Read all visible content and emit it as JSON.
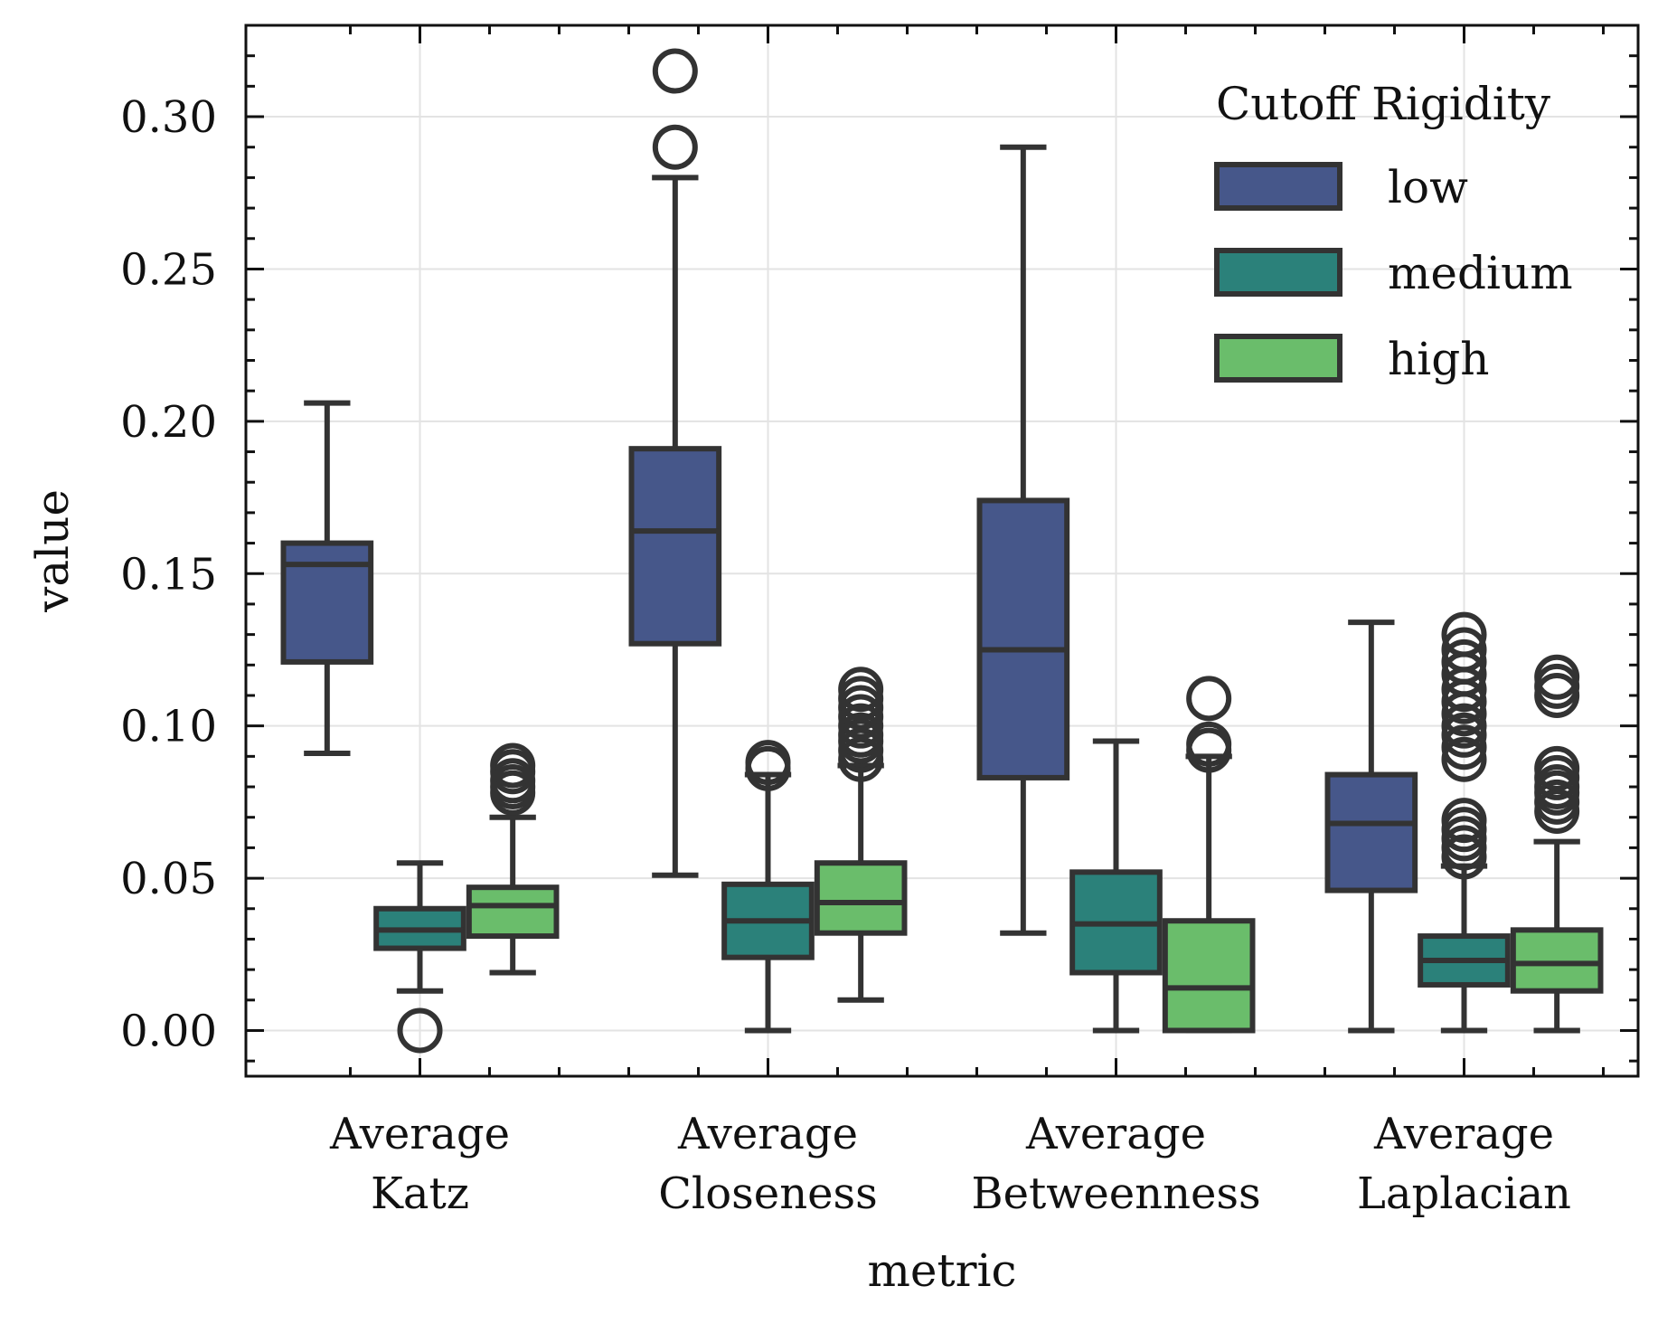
{
  "chart_data": {
    "type": "box",
    "title": "",
    "xlabel": "metric",
    "ylabel": "value",
    "ylim": [
      -0.015,
      0.33
    ],
    "yticks": [
      0.0,
      0.05,
      0.1,
      0.15,
      0.2,
      0.25,
      0.3
    ],
    "ytick_labels": [
      "0.00",
      "0.05",
      "0.10",
      "0.15",
      "0.20",
      "0.25",
      "0.30"
    ],
    "grid": true,
    "categories": [
      [
        "Average",
        "Katz"
      ],
      [
        "Average",
        "Closeness"
      ],
      [
        "Average",
        "Betweenness"
      ],
      [
        "Average",
        "Laplacian"
      ]
    ],
    "legend": {
      "title": "Cutoff Rigidity",
      "placement": "top-right"
    },
    "series": [
      {
        "name": "low",
        "color": "#46578a",
        "boxes": [
          {
            "whislo": 0.091,
            "q1": 0.121,
            "med": 0.153,
            "q3": 0.16,
            "whishi": 0.206,
            "fliers": []
          },
          {
            "whislo": 0.051,
            "q1": 0.127,
            "med": 0.164,
            "q3": 0.191,
            "whishi": 0.28,
            "fliers": [
              0.29,
              0.315
            ]
          },
          {
            "whislo": 0.032,
            "q1": 0.083,
            "med": 0.125,
            "q3": 0.174,
            "whishi": 0.29,
            "fliers": []
          },
          {
            "whislo": 0.0,
            "q1": 0.046,
            "med": 0.068,
            "q3": 0.084,
            "whishi": 0.134,
            "fliers": []
          }
        ]
      },
      {
        "name": "medium",
        "color": "#2b817a",
        "boxes": [
          {
            "whislo": 0.013,
            "q1": 0.027,
            "med": 0.033,
            "q3": 0.04,
            "whishi": 0.055,
            "fliers": [
              0.0
            ]
          },
          {
            "whislo": 0.0,
            "q1": 0.024,
            "med": 0.036,
            "q3": 0.048,
            "whishi": 0.084,
            "fliers": [
              0.086,
              0.088
            ]
          },
          {
            "whislo": 0.0,
            "q1": 0.019,
            "med": 0.035,
            "q3": 0.052,
            "whishi": 0.095,
            "fliers": []
          },
          {
            "whislo": 0.0,
            "q1": 0.015,
            "med": 0.023,
            "q3": 0.031,
            "whishi": 0.054,
            "fliers": [
              0.057,
              0.06,
              0.063,
              0.066,
              0.069,
              0.089,
              0.093,
              0.097,
              0.1,
              0.104,
              0.108,
              0.112,
              0.117,
              0.121,
              0.125,
              0.13
            ]
          }
        ]
      },
      {
        "name": "high",
        "color": "#6abd6b",
        "boxes": [
          {
            "whislo": 0.019,
            "q1": 0.031,
            "med": 0.041,
            "q3": 0.047,
            "whishi": 0.07,
            "fliers": [
              0.078,
              0.08,
              0.082,
              0.085,
              0.087
            ]
          },
          {
            "whislo": 0.01,
            "q1": 0.032,
            "med": 0.042,
            "q3": 0.055,
            "whishi": 0.087,
            "fliers": [
              0.089,
              0.092,
              0.095,
              0.097,
              0.1,
              0.103,
              0.106,
              0.109,
              0.112
            ]
          },
          {
            "whislo": 0.0,
            "q1": 0.0,
            "med": 0.014,
            "q3": 0.036,
            "whishi": 0.09,
            "fliers": [
              0.092,
              0.094,
              0.109
            ]
          },
          {
            "whislo": 0.0,
            "q1": 0.013,
            "med": 0.022,
            "q3": 0.033,
            "whishi": 0.062,
            "fliers": [
              0.072,
              0.075,
              0.078,
              0.08,
              0.083,
              0.086,
              0.11,
              0.113,
              0.116
            ]
          }
        ]
      }
    ]
  }
}
